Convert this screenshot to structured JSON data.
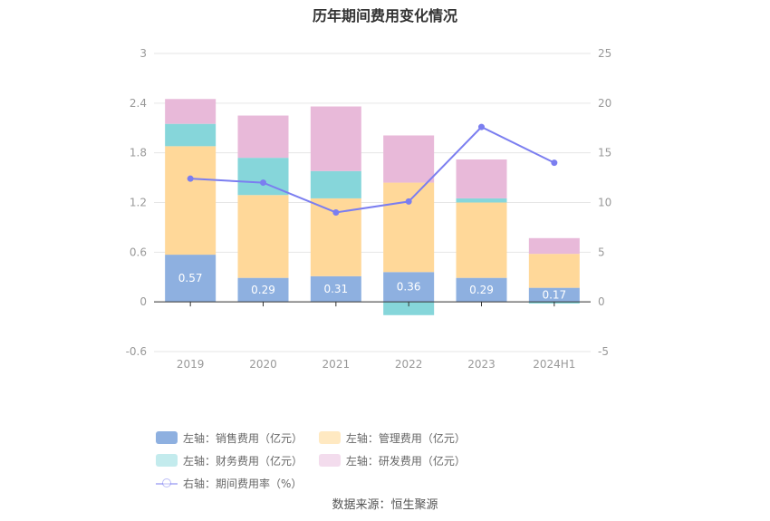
{
  "title": "历年期间费用变化情况",
  "source": "数据来源：恒生聚源",
  "chart_data": {
    "type": "bar",
    "stacked": true,
    "categories": [
      "2019",
      "2020",
      "2021",
      "2022",
      "2023",
      "2024H1"
    ],
    "left_axis": {
      "ticks": [
        "3",
        "2.4",
        "1.8",
        "1.2",
        "0.6",
        "0",
        "-0.6"
      ],
      "ylim": [
        -0.6,
        3
      ]
    },
    "right_axis": {
      "ticks": [
        "25",
        "20",
        "15",
        "10",
        "5",
        "0",
        "-5"
      ],
      "ylim": [
        -5,
        25
      ]
    },
    "series": [
      {
        "name": "左轴：销售费用（亿元）",
        "color": "#8eb0e0",
        "axis": "left",
        "values": [
          0.57,
          0.29,
          0.31,
          0.36,
          0.29,
          0.17
        ],
        "labels": [
          "0.57",
          "0.29",
          "0.31",
          "0.36",
          "0.29",
          "0.17"
        ]
      },
      {
        "name": "左轴：管理费用（亿元）",
        "color": "#ffd899",
        "axis": "left",
        "values": [
          1.31,
          1.0,
          0.94,
          1.08,
          0.91,
          0.41
        ]
      },
      {
        "name": "左轴：财务费用（亿元）",
        "color": "#86d6da",
        "axis": "left",
        "values": [
          0.27,
          0.45,
          0.33,
          -0.16,
          0.05,
          -0.02
        ]
      },
      {
        "name": "左轴：研发费用（亿元）",
        "color": "#e8b9d9",
        "axis": "left",
        "values": [
          0.3,
          0.51,
          0.78,
          0.57,
          0.47,
          0.19
        ]
      },
      {
        "name": "右轴：期间费用率（%）",
        "color": "#7b7ef0",
        "axis": "right",
        "type": "line",
        "values": [
          12.4,
          12.0,
          9.0,
          10.1,
          17.6,
          14.0
        ]
      }
    ],
    "grid": true,
    "legend_position": "bottom"
  }
}
